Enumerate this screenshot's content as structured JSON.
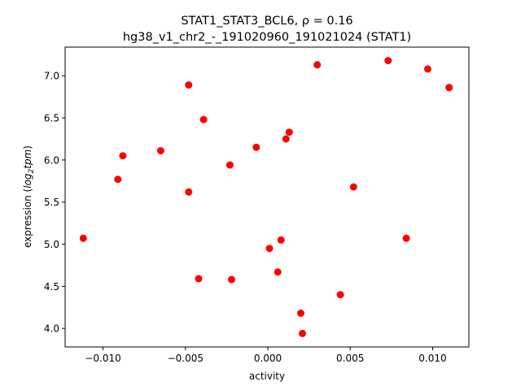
{
  "chart_data": {
    "type": "scatter",
    "title_line1": "STAT1_STAT3_BCL6, ρ = 0.16",
    "title_line2": "hg38_v1_chr2_-_191020960_191021024 (STAT1)",
    "xlabel": "activity",
    "ylabel_prefix": "expression (",
    "ylabel_math": "log",
    "ylabel_sub": "2",
    "ylabel_math2": "tpm",
    "ylabel_suffix": ")",
    "xlim": [
      -0.0123,
      0.0122
    ],
    "ylim": [
      3.78,
      7.34
    ],
    "x_ticks": [
      -0.01,
      -0.005,
      0.0,
      0.005,
      0.01
    ],
    "x_tick_labels": [
      "−0.010",
      "−0.005",
      "0.000",
      "0.005",
      "0.010"
    ],
    "y_ticks": [
      4.0,
      4.5,
      5.0,
      5.5,
      6.0,
      6.5,
      7.0
    ],
    "y_tick_labels": [
      "4.0",
      "4.5",
      "5.0",
      "5.5",
      "6.0",
      "6.5",
      "7.0"
    ],
    "marker_color": "#ff0000",
    "grid": false,
    "points": [
      {
        "x": -0.0112,
        "y": 5.07
      },
      {
        "x": -0.0091,
        "y": 5.77
      },
      {
        "x": -0.0088,
        "y": 6.05
      },
      {
        "x": -0.0065,
        "y": 6.11
      },
      {
        "x": -0.0048,
        "y": 6.89
      },
      {
        "x": -0.0048,
        "y": 5.62
      },
      {
        "x": -0.0042,
        "y": 4.59
      },
      {
        "x": -0.0039,
        "y": 6.48
      },
      {
        "x": -0.0023,
        "y": 5.94
      },
      {
        "x": -0.0022,
        "y": 4.58
      },
      {
        "x": -0.0007,
        "y": 6.15
      },
      {
        "x": 0.0001,
        "y": 4.95
      },
      {
        "x": 0.0006,
        "y": 4.67
      },
      {
        "x": 0.0008,
        "y": 5.05
      },
      {
        "x": 0.0011,
        "y": 6.25
      },
      {
        "x": 0.0013,
        "y": 6.33
      },
      {
        "x": 0.002,
        "y": 4.18
      },
      {
        "x": 0.0021,
        "y": 3.94
      },
      {
        "x": 0.003,
        "y": 7.13
      },
      {
        "x": 0.0044,
        "y": 4.4
      },
      {
        "x": 0.0052,
        "y": 5.68
      },
      {
        "x": 0.0073,
        "y": 7.18
      },
      {
        "x": 0.0084,
        "y": 5.07
      },
      {
        "x": 0.0097,
        "y": 7.08
      },
      {
        "x": 0.011,
        "y": 6.86
      }
    ]
  }
}
